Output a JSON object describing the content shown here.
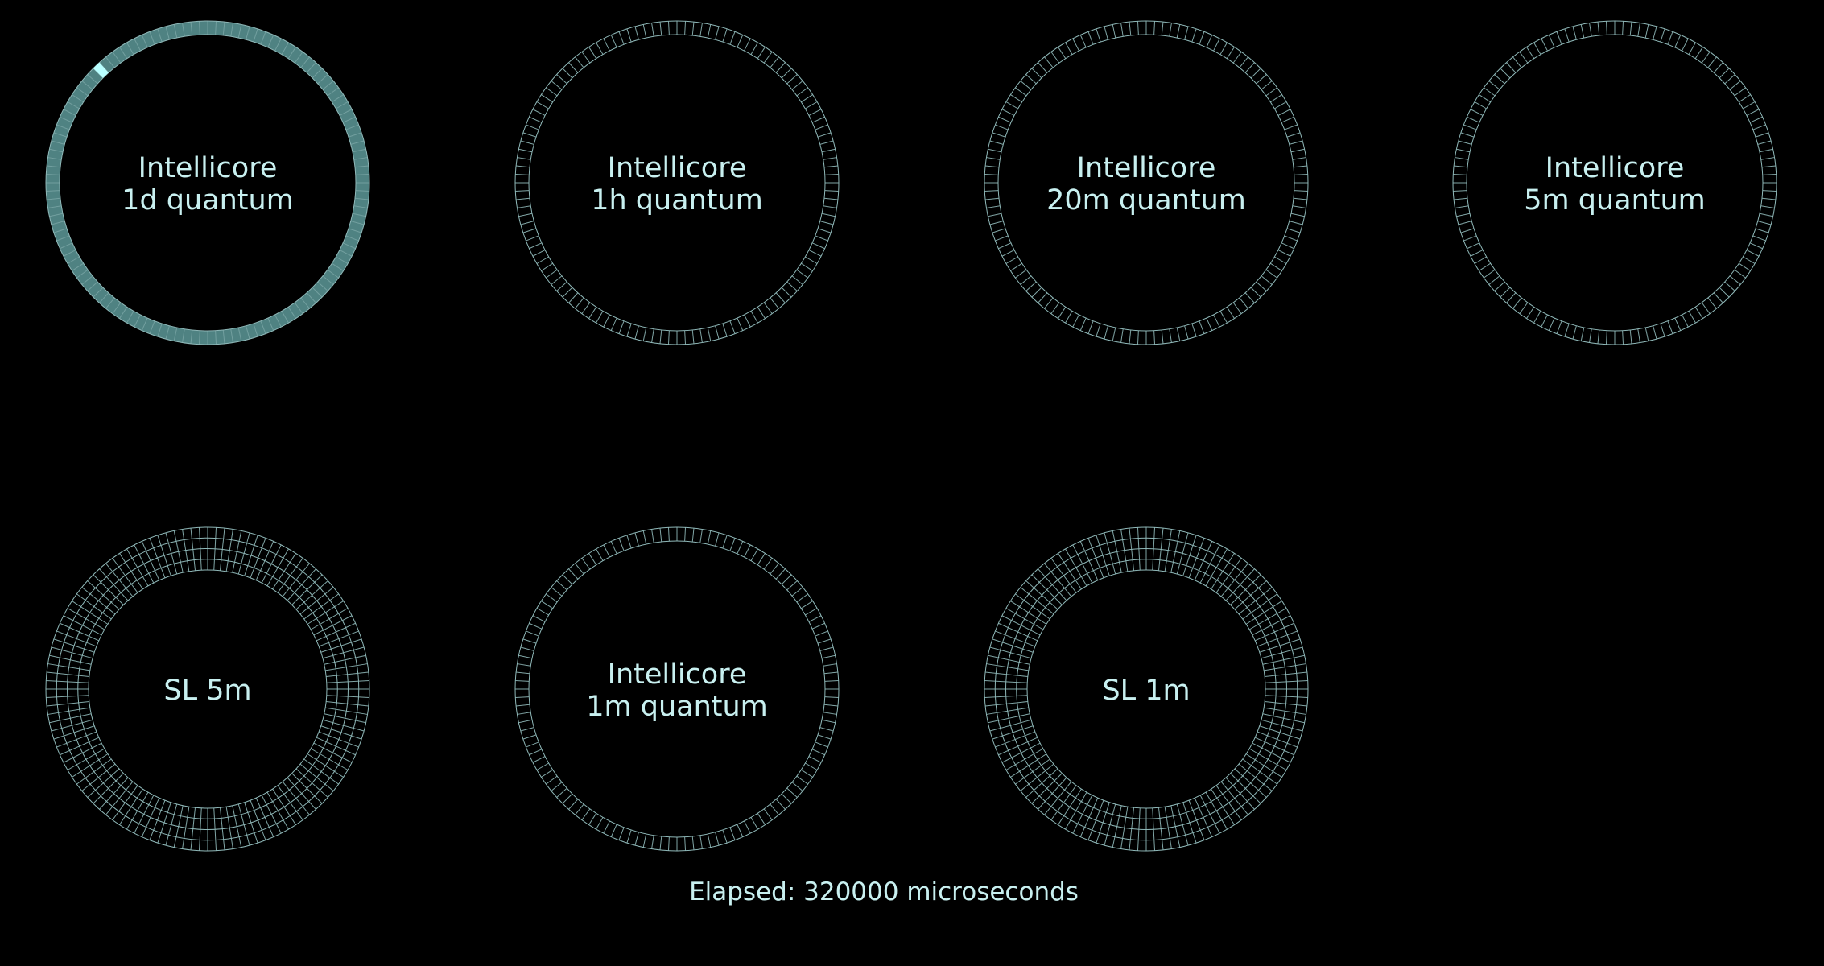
{
  "colors": {
    "background": "#000000",
    "ring_stroke": "#8fb8b8",
    "ring_fill_active": "#4f8282",
    "progress_marker": "#b8ffff",
    "text": "#c8f0f0"
  },
  "dials": [
    {
      "id": "intellicore-1d",
      "lines": [
        "Intellicore",
        "1d quantum"
      ],
      "rings": 1,
      "segments": 120,
      "filled": true,
      "progress_fraction": 0.875
    },
    {
      "id": "intellicore-1h",
      "lines": [
        "Intellicore",
        "1h quantum"
      ],
      "rings": 1,
      "segments": 120,
      "filled": false
    },
    {
      "id": "intellicore-20m",
      "lines": [
        "Intellicore",
        "20m quantum"
      ],
      "rings": 1,
      "segments": 120,
      "filled": false
    },
    {
      "id": "intellicore-5m",
      "lines": [
        "Intellicore",
        "5m quantum"
      ],
      "rings": 1,
      "segments": 120,
      "filled": false
    },
    {
      "id": "sl-5m",
      "lines": [
        "SL 5m"
      ],
      "rings": 4,
      "segments": 120,
      "filled": false
    },
    {
      "id": "intellicore-1m",
      "lines": [
        "Intellicore",
        "1m quantum"
      ],
      "rings": 1,
      "segments": 120,
      "filled": false
    },
    {
      "id": "sl-1m",
      "lines": [
        "SL 1m"
      ],
      "rings": 4,
      "segments": 120,
      "filled": false
    }
  ],
  "status": {
    "elapsed_text": "Elapsed: 320000 microseconds"
  }
}
